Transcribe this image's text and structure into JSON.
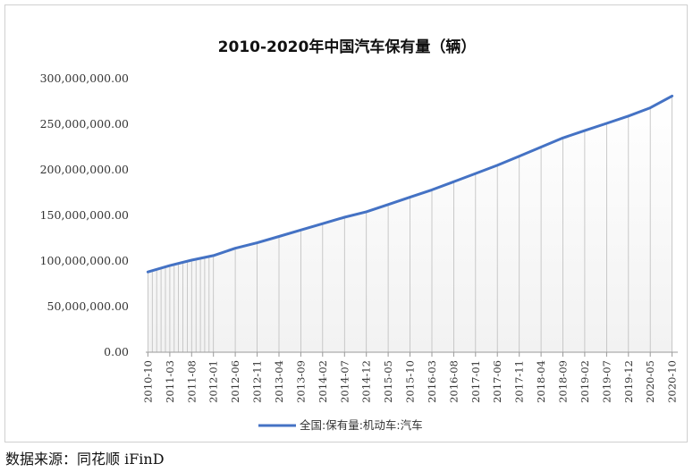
{
  "chart_data": {
    "type": "line",
    "title": "2010-2020年中国汽车保有量（辆）",
    "xlabel": "",
    "ylabel": "",
    "ylim": [
      0,
      300000000
    ],
    "y_ticks": [
      "300,000,000.00",
      "250,000,000.00",
      "200,000,000.00",
      "150,000,000.00",
      "100,000,000.00",
      "50,000,000.00",
      "0.00"
    ],
    "x_ticks": [
      "2010-10",
      "2011-03",
      "2011-08",
      "2012-01",
      "2012-06",
      "2012-11",
      "2013-04",
      "2013-09",
      "2014-02",
      "2014-07",
      "2014-12",
      "2015-05",
      "2015-10",
      "2016-03",
      "2016-08",
      "2017-01",
      "2017-06",
      "2017-11",
      "2018-04",
      "2018-09",
      "2019-02",
      "2019-07",
      "2019-12",
      "2020-05",
      "2020-10"
    ],
    "legend_position": "bottom",
    "grid": false,
    "series": [
      {
        "name": "全国:保有量:机动车:汽车",
        "color": "#4472c4",
        "points": [
          [
            "2010-10",
            88000000
          ],
          [
            "2011-03",
            95000000
          ],
          [
            "2011-08",
            101000000
          ],
          [
            "2012-01",
            106000000
          ],
          [
            "2012-06",
            114000000
          ],
          [
            "2012-11",
            120000000
          ],
          [
            "2013-04",
            127000000
          ],
          [
            "2013-09",
            134000000
          ],
          [
            "2014-02",
            141000000
          ],
          [
            "2014-07",
            148000000
          ],
          [
            "2014-12",
            154000000
          ],
          [
            "2015-05",
            162000000
          ],
          [
            "2015-10",
            170000000
          ],
          [
            "2016-03",
            178000000
          ],
          [
            "2016-08",
            187000000
          ],
          [
            "2017-01",
            196000000
          ],
          [
            "2017-06",
            205000000
          ],
          [
            "2017-11",
            215000000
          ],
          [
            "2018-04",
            225000000
          ],
          [
            "2018-09",
            235000000
          ],
          [
            "2019-02",
            243000000
          ],
          [
            "2019-07",
            251000000
          ],
          [
            "2019-12",
            259000000
          ],
          [
            "2020-05",
            268000000
          ],
          [
            "2020-10",
            281000000
          ]
        ]
      }
    ]
  },
  "source_note": "数据来源：同花顺 iFinD"
}
